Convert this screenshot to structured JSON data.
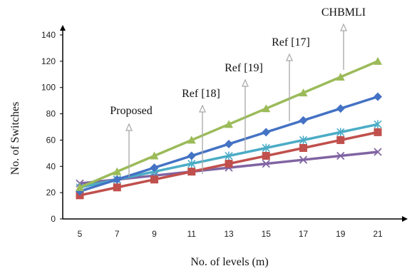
{
  "chart_data": {
    "type": "line",
    "title": "",
    "xlabel": "No. of levels (m)",
    "ylabel": "No. of Switches",
    "x": [
      5,
      7,
      9,
      11,
      13,
      15,
      17,
      19,
      21
    ],
    "xlim": [
      5,
      21
    ],
    "ylim": [
      0,
      140
    ],
    "yticks": [
      0,
      20,
      40,
      60,
      80,
      100,
      120,
      140
    ],
    "grid": false,
    "legend": "none",
    "series": [
      {
        "name": "CHBMLI",
        "color": "#9BBB59",
        "marker": "triangle",
        "values": [
          24,
          36,
          48,
          60,
          72,
          84,
          96,
          108,
          120
        ]
      },
      {
        "name": "Ref [17]",
        "color": "#4472C4",
        "marker": "diamond",
        "values": [
          21,
          30,
          39,
          48,
          57,
          66,
          75,
          84,
          93
        ]
      },
      {
        "name": "Ref [19]",
        "color": "#4BACC6",
        "marker": "star",
        "values": [
          24,
          30,
          36,
          42,
          48,
          54,
          60,
          66,
          72
        ]
      },
      {
        "name": "Ref [18]",
        "color": "#8064A2",
        "marker": "x",
        "values": [
          27,
          30,
          33,
          36,
          39,
          42,
          45,
          48,
          51
        ]
      },
      {
        "name": "Proposed",
        "color": "#C0504D",
        "marker": "square",
        "values": [
          18,
          24,
          30,
          36,
          42,
          48,
          54,
          60,
          66
        ]
      }
    ],
    "annotations": [
      {
        "text": "CHBMLI",
        "series": "CHBMLI"
      },
      {
        "text": "Ref [17]",
        "series": "Ref [17]"
      },
      {
        "text": "Ref [19]",
        "series": "Ref [19]"
      },
      {
        "text": "Ref [18]",
        "series": "Ref [18]"
      },
      {
        "text": "Proposed",
        "series": "Proposed"
      }
    ]
  }
}
